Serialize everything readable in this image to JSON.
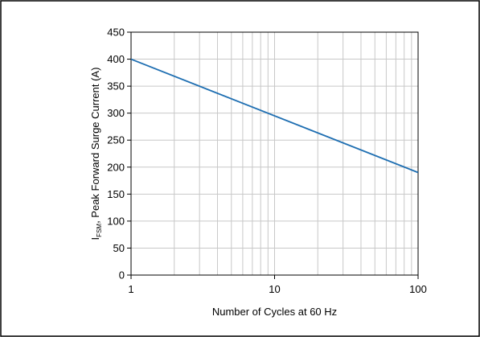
{
  "chart_data": {
    "type": "line",
    "xscale": "log",
    "xlim": [
      1,
      100
    ],
    "ylim": [
      0,
      450
    ],
    "xticks": [
      1,
      10,
      100
    ],
    "xtick_labels": [
      "1",
      "10",
      "100"
    ],
    "yticks": [
      0,
      50,
      100,
      150,
      200,
      250,
      300,
      350,
      400,
      450
    ],
    "ytick_labels": [
      "0",
      "50",
      "100",
      "150",
      "200",
      "250",
      "300",
      "350",
      "400",
      "450"
    ],
    "grid": true,
    "xlabel": "Number of Cycles at 60 Hz",
    "ylabel": {
      "main": "I",
      "subscript": "FSM",
      "rest": ", Peak Forward Surge Current (A)"
    },
    "series": [
      {
        "color": "#1f6fb2",
        "x": [
          1,
          100
        ],
        "y": [
          400,
          190
        ]
      }
    ]
  }
}
